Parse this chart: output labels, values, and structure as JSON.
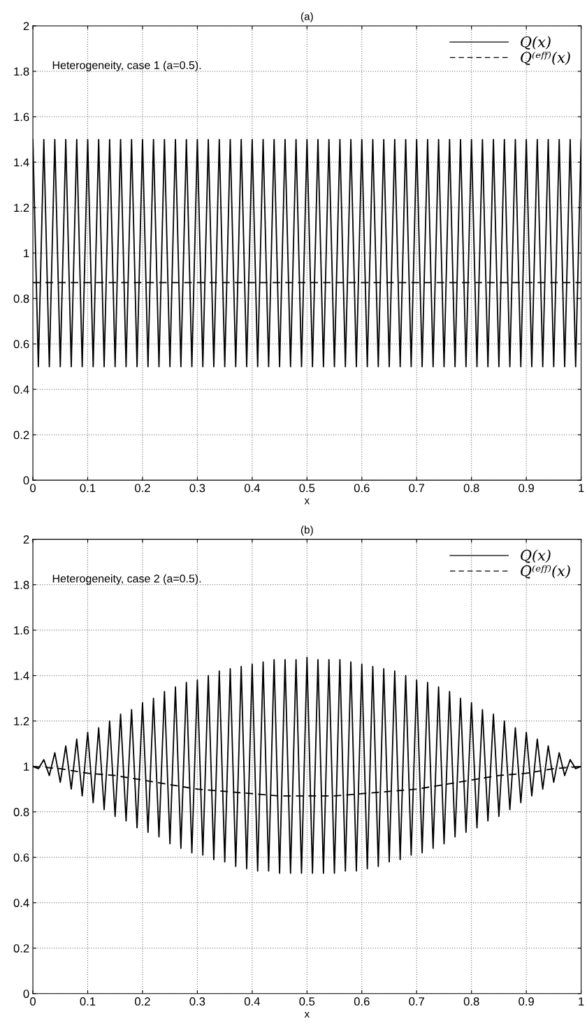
{
  "chart_data": [
    {
      "type": "line",
      "title": "(a)",
      "xlabel": "x",
      "xlim": [
        0,
        1
      ],
      "ylim": [
        0,
        2
      ],
      "xticks": [
        0,
        0.1,
        0.2,
        0.3,
        0.4,
        0.5,
        0.6,
        0.7,
        0.8,
        0.9,
        1
      ],
      "yticks": [
        0,
        0.2,
        0.4,
        0.6,
        0.8,
        1,
        1.2,
        1.4,
        1.6,
        1.8,
        2
      ],
      "grid": true,
      "legend": "top right",
      "annotations": [
        "Heterogeneity, case 1 (a=0.5)."
      ],
      "x": [
        0,
        0.01,
        0.02,
        0.03,
        0.04,
        0.05,
        0.06,
        0.07,
        0.08,
        0.09,
        0.1,
        0.11,
        0.12,
        0.13,
        0.14,
        0.15,
        0.16,
        0.17,
        0.18,
        0.19,
        0.2,
        0.21,
        0.22,
        0.23,
        0.24,
        0.25,
        0.26,
        0.27,
        0.28,
        0.29,
        0.3,
        0.31,
        0.32,
        0.33,
        0.34,
        0.35,
        0.36,
        0.37,
        0.38,
        0.39,
        0.4,
        0.41,
        0.42,
        0.43,
        0.44,
        0.45,
        0.46,
        0.47,
        0.48,
        0.49,
        0.5,
        0.51,
        0.52,
        0.53,
        0.54,
        0.55,
        0.56,
        0.57,
        0.58,
        0.59,
        0.6,
        0.61,
        0.62,
        0.63,
        0.64,
        0.65,
        0.66,
        0.67,
        0.68,
        0.69,
        0.7,
        0.71,
        0.72,
        0.73,
        0.74,
        0.75,
        0.76,
        0.77,
        0.78,
        0.79,
        0.8,
        0.81,
        0.82,
        0.83,
        0.84,
        0.85,
        0.86,
        0.87,
        0.88,
        0.89,
        0.9,
        0.91,
        0.92,
        0.93,
        0.94,
        0.95,
        0.96,
        0.97,
        0.98,
        0.99,
        1
      ],
      "series": [
        {
          "name": "Q(x)",
          "color": "#000000",
          "line_style": "solid",
          "values": [
            1.5,
            0.5,
            1.5,
            0.5,
            1.5,
            0.5,
            1.5,
            0.5,
            1.5,
            0.5,
            1.5,
            0.5,
            1.5,
            0.5,
            1.5,
            0.5,
            1.5,
            0.5,
            1.5,
            0.5,
            1.5,
            0.5,
            1.5,
            0.5,
            1.5,
            0.5,
            1.5,
            0.5,
            1.5,
            0.5,
            1.5,
            0.5,
            1.5,
            0.5,
            1.5,
            0.5,
            1.5,
            0.5,
            1.5,
            0.5,
            1.5,
            0.5,
            1.5,
            0.5,
            1.5,
            0.5,
            1.5,
            0.5,
            1.5,
            0.5,
            1.5,
            0.5,
            1.5,
            0.5,
            1.5,
            0.5,
            1.5,
            0.5,
            1.5,
            0.5,
            1.5,
            0.5,
            1.5,
            0.5,
            1.5,
            0.5,
            1.5,
            0.5,
            1.5,
            0.5,
            1.5,
            0.5,
            1.5,
            0.5,
            1.5,
            0.5,
            1.5,
            0.5,
            1.5,
            0.5,
            1.5,
            0.5,
            1.5,
            0.5,
            1.5,
            0.5,
            1.5,
            0.5,
            1.5,
            0.5,
            1.5,
            0.5,
            1.5,
            0.5,
            1.5,
            0.5,
            1.5,
            0.5,
            1.5,
            0.5,
            1.5
          ]
        },
        {
          "name": "Q⁽ᵉᶠᶠ⁾(x)",
          "color": "#000000",
          "line_style": "dashed",
          "x": [
            0,
            1
          ],
          "values": [
            0.87,
            0.87
          ]
        }
      ]
    },
    {
      "type": "line",
      "title": "(b)",
      "xlabel": "x",
      "xlim": [
        0,
        1
      ],
      "ylim": [
        0,
        2
      ],
      "xticks": [
        0,
        0.1,
        0.2,
        0.3,
        0.4,
        0.5,
        0.6,
        0.7,
        0.8,
        0.9,
        1
      ],
      "yticks": [
        0,
        0.2,
        0.4,
        0.6,
        0.8,
        1,
        1.2,
        1.4,
        1.6,
        1.8,
        2
      ],
      "grid": true,
      "legend": "top right",
      "annotations": [
        "Heterogeneity, case 2 (a=0.5)."
      ],
      "x": [
        0,
        0.01,
        0.02,
        0.03,
        0.04,
        0.05,
        0.06,
        0.07,
        0.08,
        0.09,
        0.1,
        0.11,
        0.12,
        0.13,
        0.14,
        0.15,
        0.16,
        0.17,
        0.18,
        0.19,
        0.2,
        0.21,
        0.22,
        0.23,
        0.24,
        0.25,
        0.26,
        0.27,
        0.28,
        0.29,
        0.3,
        0.31,
        0.32,
        0.33,
        0.34,
        0.35,
        0.36,
        0.37,
        0.38,
        0.39,
        0.4,
        0.41,
        0.42,
        0.43,
        0.44,
        0.45,
        0.46,
        0.47,
        0.48,
        0.49,
        0.5,
        0.51,
        0.52,
        0.53,
        0.54,
        0.55,
        0.56,
        0.57,
        0.58,
        0.59,
        0.6,
        0.61,
        0.62,
        0.63,
        0.64,
        0.65,
        0.66,
        0.67,
        0.68,
        0.69,
        0.7,
        0.71,
        0.72,
        0.73,
        0.74,
        0.75,
        0.76,
        0.77,
        0.78,
        0.79,
        0.8,
        0.81,
        0.82,
        0.83,
        0.84,
        0.85,
        0.86,
        0.87,
        0.88,
        0.89,
        0.9,
        0.91,
        0.92,
        0.93,
        0.94,
        0.95,
        0.96,
        0.97,
        0.98,
        0.99,
        1
      ],
      "series": [
        {
          "name": "Q(x)",
          "color": "#000000",
          "line_style": "solid",
          "values": [
            1.0,
            0.99,
            1.03,
            0.96,
            1.06,
            0.93,
            1.09,
            0.9,
            1.12,
            0.87,
            1.15,
            0.84,
            1.17,
            0.81,
            1.2,
            0.78,
            1.23,
            0.76,
            1.25,
            0.73,
            1.28,
            0.71,
            1.3,
            0.69,
            1.33,
            0.66,
            1.35,
            0.64,
            1.37,
            0.62,
            1.38,
            0.61,
            1.4,
            0.59,
            1.42,
            0.58,
            1.43,
            0.56,
            1.44,
            0.55,
            1.45,
            0.54,
            1.46,
            0.54,
            1.47,
            0.53,
            1.47,
            0.53,
            1.47,
            0.53,
            1.48,
            0.53,
            1.47,
            0.53,
            1.47,
            0.53,
            1.47,
            0.54,
            1.46,
            0.54,
            1.45,
            0.55,
            1.44,
            0.56,
            1.43,
            0.58,
            1.42,
            0.59,
            1.4,
            0.61,
            1.38,
            0.62,
            1.37,
            0.64,
            1.35,
            0.66,
            1.33,
            0.69,
            1.3,
            0.71,
            1.28,
            0.73,
            1.25,
            0.76,
            1.23,
            0.78,
            1.2,
            0.81,
            1.17,
            0.84,
            1.15,
            0.87,
            1.12,
            0.9,
            1.09,
            0.93,
            1.06,
            0.96,
            1.03,
            0.99,
            1.0
          ]
        },
        {
          "name": "Q⁽ᵉᶠᶠ⁾(x)",
          "color": "#000000",
          "line_style": "dashed",
          "x": [
            0,
            0.05,
            0.1,
            0.15,
            0.2,
            0.25,
            0.3,
            0.35,
            0.4,
            0.45,
            0.5,
            0.55,
            0.6,
            0.65,
            0.7,
            0.75,
            0.8,
            0.85,
            0.9,
            0.95,
            1
          ],
          "values": [
            1.0,
            0.99,
            0.97,
            0.96,
            0.94,
            0.92,
            0.9,
            0.89,
            0.88,
            0.87,
            0.87,
            0.87,
            0.88,
            0.89,
            0.9,
            0.92,
            0.94,
            0.96,
            0.97,
            0.99,
            1.0
          ]
        }
      ]
    }
  ]
}
